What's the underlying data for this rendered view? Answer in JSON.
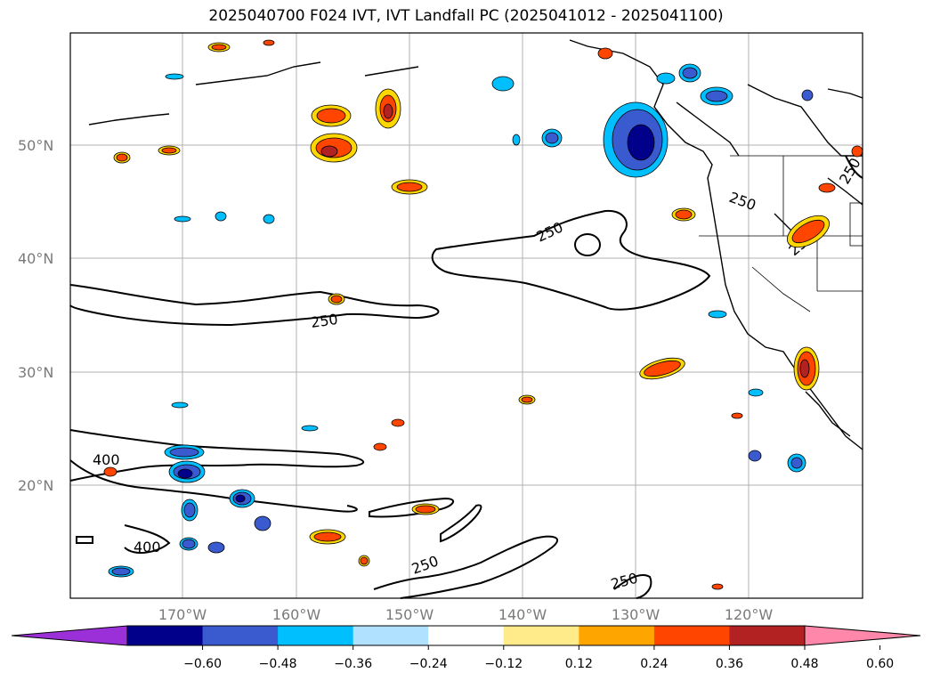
{
  "title": "2025040700 F024 IVT, IVT Landfall PC (2025041012 - 2025041100)",
  "lat_labels": [
    "50°N",
    "40°N",
    "30°N",
    "20°N"
  ],
  "lon_labels": [
    "170°W",
    "160°W",
    "150°W",
    "140°W",
    "130°W",
    "120°W"
  ],
  "contour_labels": [
    "250",
    "250",
    "250",
    "250",
    "250",
    "400",
    "400",
    "250",
    "250"
  ],
  "colorbar": {
    "ticks": [
      "−0.60",
      "−0.48",
      "−0.36",
      "−0.24",
      "−0.12",
      "0.12",
      "0.24",
      "0.36",
      "0.48",
      "0.60"
    ],
    "under_color": "#9b30d9",
    "over_color": "#ff88aa",
    "colors": [
      "#00008b",
      "#3a5bd0",
      "#00bfff",
      "#b0e2ff",
      "#ffffff",
      "#ffeb8a",
      "#ffa500",
      "#ff4500",
      "#b22222"
    ]
  },
  "colors": {
    "positive_outer": "#ffd700",
    "positive_mid": "#ff4500",
    "positive_core": "#b22222",
    "negative_outer": "#00bfff",
    "negative_mid": "#3a5bd0",
    "negative_core": "#00008b"
  }
}
